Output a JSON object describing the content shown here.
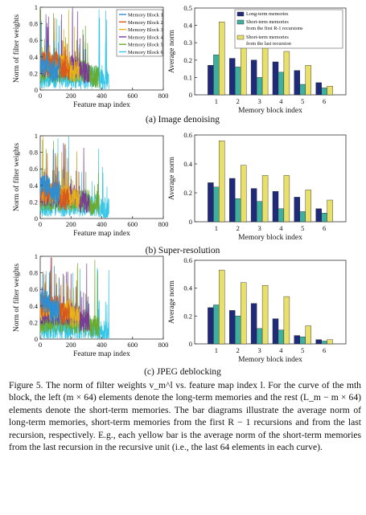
{
  "figure": {
    "rows": [
      {
        "sublabel": "(a) Image denoising",
        "line_chart": {
          "ylabel": "Norm of filter weights",
          "xlabel": "Feature map index",
          "xticks": [
            "0",
            "200",
            "400",
            "600",
            "800"
          ],
          "yticks": [
            "0",
            "0.2",
            "0.4",
            "0.6",
            "0.8",
            "1"
          ],
          "legend": [
            "Memory Block 1",
            "Memory Block 2",
            "Memory Block 3",
            "Memory Block 4",
            "Memory Block 5",
            "Memory Block 6"
          ]
        },
        "bar_chart": {
          "ylabel": "Average norm",
          "xlabel": "Memory block index",
          "yticks": [
            "0",
            "0.1",
            "0.2",
            "0.3",
            "0.4",
            "0.5"
          ],
          "xticks": [
            "1",
            "2",
            "3",
            "4",
            "5",
            "6"
          ],
          "legend": [
            "Long-term memories",
            "Short-term memories from the first R-1 recursions",
            "Short-term memories from the last recursion"
          ]
        }
      },
      {
        "sublabel": "(b) Super-resolution",
        "line_chart": {
          "ylabel": "Norm of filter weights",
          "xlabel": "Feature map index",
          "xticks": [
            "0",
            "200",
            "400",
            "600",
            "800"
          ],
          "yticks": [
            "0",
            "0.2",
            "0.4",
            "0.6",
            "0.8",
            "1"
          ]
        },
        "bar_chart": {
          "ylabel": "Average norm",
          "xlabel": "Memory block index",
          "yticks": [
            "0",
            "0.2",
            "0.4",
            "0.6"
          ],
          "xticks": [
            "1",
            "2",
            "3",
            "4",
            "5",
            "6"
          ]
        }
      },
      {
        "sublabel": "(c) JPEG deblocking",
        "line_chart": {
          "ylabel": "Norm of filter weights",
          "xlabel": "Feature map index",
          "xticks": [
            "0",
            "200",
            "400",
            "600",
            "800"
          ],
          "yticks": [
            "0",
            "0.2",
            "0.4",
            "0.6",
            "0.8",
            "1"
          ]
        },
        "bar_chart": {
          "ylabel": "Average norm",
          "xlabel": "Memory block index",
          "yticks": [
            "0",
            "0.2",
            "0.4",
            "0.6"
          ],
          "xticks": [
            "1",
            "2",
            "3",
            "4",
            "5",
            "6"
          ]
        }
      }
    ],
    "colors": {
      "long_term": "#1f2a7a",
      "short_first": "#3fb0a0",
      "short_last": "#e8e06a",
      "blocks": [
        "#2a8fd6",
        "#d95a1a",
        "#e8b21a",
        "#7a3b99",
        "#6aab2e",
        "#35c6e8"
      ]
    }
  },
  "caption": {
    "label": "Figure 5.",
    "text": "The norm of filter weights v_m^l vs. feature map index l. For the curve of the mth block, the left (m × 64) elements denote the long-term memories and the rest (L_m − m × 64) elements denote the short-term memories. The bar diagrams illustrate the average norm of long-term memories, short-term memories from the first R − 1 recursions and from the last recursion, respectively. E.g., each yellow bar is the average norm of the short-term memories from the last recursion in the recursive unit (i.e., the last 64 elements in each curve)."
  },
  "chart_data": [
    {
      "type": "bar",
      "categories": [
        "1",
        "2",
        "3",
        "4",
        "5",
        "6"
      ],
      "series": [
        {
          "name": "Long-term memories",
          "values": [
            0.17,
            0.21,
            0.2,
            0.19,
            0.14,
            0.07
          ]
        },
        {
          "name": "Short-term memories from the first R-1 recursions",
          "values": [
            0.23,
            0.16,
            0.1,
            0.13,
            0.06,
            0.04
          ]
        },
        {
          "name": "Short-term memories from the last recursion",
          "values": [
            0.42,
            0.32,
            0.27,
            0.25,
            0.17,
            0.05
          ]
        }
      ],
      "xlabel": "Memory block index",
      "ylabel": "Average norm",
      "ylim": [
        0,
        0.5
      ]
    },
    {
      "type": "bar",
      "categories": [
        "1",
        "2",
        "3",
        "4",
        "5",
        "6"
      ],
      "series": [
        {
          "name": "Long-term memories",
          "values": [
            0.27,
            0.3,
            0.23,
            0.21,
            0.17,
            0.09
          ]
        },
        {
          "name": "Short-term memories from the first R-1 recursions",
          "values": [
            0.24,
            0.16,
            0.14,
            0.09,
            0.07,
            0.06
          ]
        },
        {
          "name": "Short-term memories from the last recursion",
          "values": [
            0.56,
            0.39,
            0.32,
            0.32,
            0.22,
            0.15
          ]
        }
      ],
      "xlabel": "Memory block index",
      "ylabel": "Average norm",
      "ylim": [
        0,
        0.6
      ]
    },
    {
      "type": "bar",
      "categories": [
        "1",
        "2",
        "3",
        "4",
        "5",
        "6"
      ],
      "series": [
        {
          "name": "Long-term memories",
          "values": [
            0.26,
            0.24,
            0.29,
            0.18,
            0.06,
            0.03
          ]
        },
        {
          "name": "Short-term memories from the first R-1 recursions",
          "values": [
            0.28,
            0.2,
            0.11,
            0.1,
            0.05,
            0.02
          ]
        },
        {
          "name": "Short-term memories from the last recursion",
          "values": [
            0.53,
            0.44,
            0.42,
            0.34,
            0.13,
            0.03
          ]
        }
      ],
      "xlabel": "Memory block index",
      "ylabel": "Average norm",
      "ylim": [
        0,
        0.6
      ]
    },
    {
      "type": "line",
      "series": [
        {
          "name": "Memory Block 1",
          "length": 128
        },
        {
          "name": "Memory Block 2",
          "length": 192
        },
        {
          "name": "Memory Block 3",
          "length": 256
        },
        {
          "name": "Memory Block 4",
          "length": 320
        },
        {
          "name": "Memory Block 5",
          "length": 384
        },
        {
          "name": "Memory Block 6",
          "length": 448
        }
      ],
      "xlabel": "Feature map index",
      "ylabel": "Norm of filter weights",
      "xlim": [
        0,
        800
      ],
      "ylim": [
        0,
        1
      ],
      "levels": {
        "a": [
          0.3,
          0.34,
          0.3,
          0.28,
          0.22,
          0.15
        ],
        "b": [
          0.4,
          0.32,
          0.3,
          0.27,
          0.22,
          0.16
        ],
        "c": [
          0.45,
          0.4,
          0.36,
          0.3,
          0.2,
          0.12
        ]
      }
    }
  ]
}
